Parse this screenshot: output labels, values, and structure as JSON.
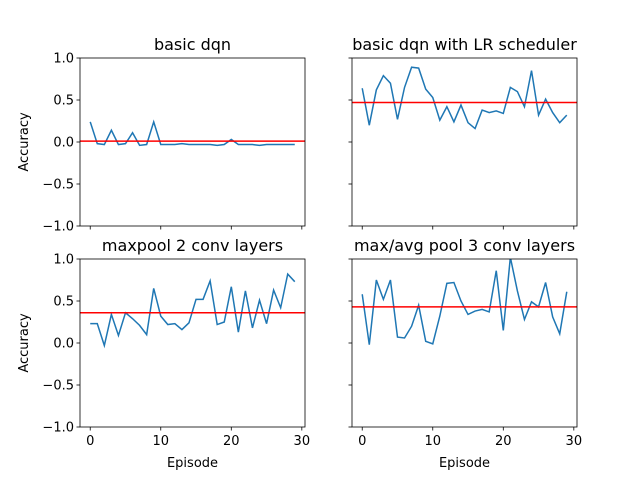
{
  "chart_data": [
    {
      "type": "line",
      "title": "basic dqn",
      "ylabel": "Accuracy",
      "x": [
        0,
        1,
        2,
        3,
        4,
        5,
        6,
        7,
        8,
        9,
        10,
        11,
        12,
        13,
        14,
        15,
        16,
        17,
        18,
        19,
        20,
        21,
        22,
        23,
        24,
        25,
        26,
        27,
        28,
        29
      ],
      "series": [
        {
          "color": "#1f77b4",
          "values": [
            0.24,
            -0.02,
            -0.03,
            0.14,
            -0.03,
            -0.02,
            0.11,
            -0.04,
            -0.03,
            0.24,
            -0.03,
            -0.03,
            -0.03,
            -0.02,
            -0.03,
            -0.03,
            -0.03,
            -0.03,
            -0.04,
            -0.03,
            0.03,
            -0.03,
            -0.03,
            -0.03,
            -0.04,
            -0.03,
            -0.03,
            -0.03,
            -0.03,
            -0.03
          ]
        }
      ],
      "hline": {
        "value": 0.01,
        "color": "#ff0000"
      },
      "xlim": [
        -1.45,
        30.45
      ],
      "xticks": [
        0,
        10,
        20,
        30
      ],
      "show_xtick_labels": false,
      "ylim": [
        -1,
        1
      ],
      "yticks": [
        {
          "value": -1,
          "label": "−1.0"
        },
        {
          "value": -0.5,
          "label": "−0.5"
        },
        {
          "value": 0,
          "label": "0.0"
        },
        {
          "value": 0.5,
          "label": "0.5"
        },
        {
          "value": 1,
          "label": "1.0"
        }
      ],
      "show_ytick_labels": true
    },
    {
      "type": "line",
      "title": "basic dqn with LR scheduler",
      "x": [
        0,
        1,
        2,
        3,
        4,
        5,
        6,
        7,
        8,
        9,
        10,
        11,
        12,
        13,
        14,
        15,
        16,
        17,
        18,
        19,
        20,
        21,
        22,
        23,
        24,
        25,
        26,
        27,
        28,
        29
      ],
      "series": [
        {
          "color": "#1f77b4",
          "values": [
            0.64,
            0.2,
            0.62,
            0.79,
            0.7,
            0.27,
            0.65,
            0.89,
            0.88,
            0.63,
            0.53,
            0.26,
            0.42,
            0.24,
            0.44,
            0.23,
            0.16,
            0.38,
            0.35,
            0.37,
            0.34,
            0.65,
            0.6,
            0.42,
            0.85,
            0.32,
            0.51,
            0.35,
            0.23,
            0.32
          ]
        }
      ],
      "hline": {
        "value": 0.47,
        "color": "#ff0000"
      },
      "xlim": [
        -1.45,
        30.45
      ],
      "xticks": [
        0,
        10,
        20,
        30
      ],
      "show_xtick_labels": false,
      "ylim": [
        -1,
        1
      ],
      "yticks": [
        -1,
        -0.5,
        0,
        0.5,
        1
      ],
      "show_ytick_labels": false
    },
    {
      "type": "line",
      "title": "maxpool 2 conv layers",
      "ylabel": "Accuracy",
      "xlabel": "Episode",
      "x": [
        0,
        1,
        2,
        3,
        4,
        5,
        6,
        7,
        8,
        9,
        10,
        11,
        12,
        13,
        14,
        15,
        16,
        17,
        18,
        19,
        20,
        21,
        22,
        23,
        24,
        25,
        26,
        27,
        28,
        29
      ],
      "series": [
        {
          "color": "#1f77b4",
          "values": [
            0.23,
            0.23,
            -0.03,
            0.34,
            0.09,
            0.36,
            0.29,
            0.21,
            0.1,
            0.65,
            0.32,
            0.22,
            0.23,
            0.16,
            0.24,
            0.52,
            0.52,
            0.74,
            0.22,
            0.25,
            0.67,
            0.13,
            0.62,
            0.18,
            0.51,
            0.23,
            0.63,
            0.42,
            0.82,
            0.73
          ]
        }
      ],
      "hline": {
        "value": 0.36,
        "color": "#ff0000"
      },
      "xlim": [
        -1.45,
        30.45
      ],
      "xticks": [
        0,
        10,
        20,
        30
      ],
      "show_xtick_labels": true,
      "ylim": [
        -1,
        1
      ],
      "yticks": [
        {
          "value": -1,
          "label": "−1.0"
        },
        {
          "value": -0.5,
          "label": "−0.5"
        },
        {
          "value": 0,
          "label": "0.0"
        },
        {
          "value": 0.5,
          "label": "0.5"
        },
        {
          "value": 1,
          "label": "1.0"
        }
      ],
      "show_ytick_labels": true
    },
    {
      "type": "line",
      "title": "max/avg pool 3 conv layers",
      "xlabel": "Episode",
      "x": [
        0,
        1,
        2,
        3,
        4,
        5,
        6,
        7,
        8,
        9,
        10,
        11,
        12,
        13,
        14,
        15,
        16,
        17,
        18,
        19,
        20,
        21,
        22,
        23,
        24,
        25,
        26,
        27,
        28,
        29
      ],
      "series": [
        {
          "color": "#1f77b4",
          "values": [
            0.58,
            -0.02,
            0.75,
            0.52,
            0.75,
            0.07,
            0.06,
            0.2,
            0.45,
            0.02,
            -0.01,
            0.32,
            0.71,
            0.72,
            0.5,
            0.34,
            0.38,
            0.4,
            0.37,
            0.86,
            0.15,
            1.02,
            0.62,
            0.28,
            0.49,
            0.43,
            0.72,
            0.31,
            0.11,
            0.61
          ]
        }
      ],
      "hline": {
        "value": 0.43,
        "color": "#ff0000"
      },
      "xlim": [
        -1.45,
        30.45
      ],
      "xticks": [
        0,
        10,
        20,
        30
      ],
      "show_xtick_labels": true,
      "ylim": [
        -1,
        1
      ],
      "yticks": [
        -1,
        -0.5,
        0,
        0.5,
        1
      ],
      "show_ytick_labels": false
    }
  ]
}
